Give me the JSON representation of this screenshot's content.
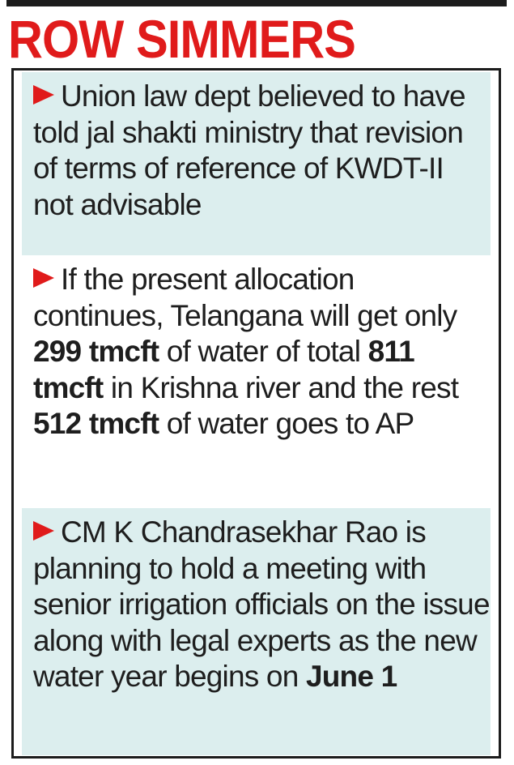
{
  "headline": "ROW SIMMERS",
  "colors": {
    "accent": "#e01b1b",
    "shade": "#dceeee",
    "text": "#1e1e1e",
    "rule": "#1c1c1c"
  },
  "icons": {
    "bullet": "red-arrowhead-icon"
  },
  "items": [
    {
      "text": "Union law dept believed to have told jal shakti ministry that revision of terms of reference of KWDT-II not advisable"
    },
    {
      "part1": "If the present allocation continues, Telangana will get only ",
      "bold1": "299 tmcft",
      "part2": " of water of total ",
      "bold2": "811 tmcft",
      "part3": " in Krishna river and the rest ",
      "bold3": "512 tmcft",
      "part4": " of water goes to AP"
    },
    {
      "part1": "CM K Chandrasekhar Rao is planning to hold a meeting with senior irrigation officials on the issue along with legal experts as the new water year begins on ",
      "bold1": "June 1"
    }
  ]
}
